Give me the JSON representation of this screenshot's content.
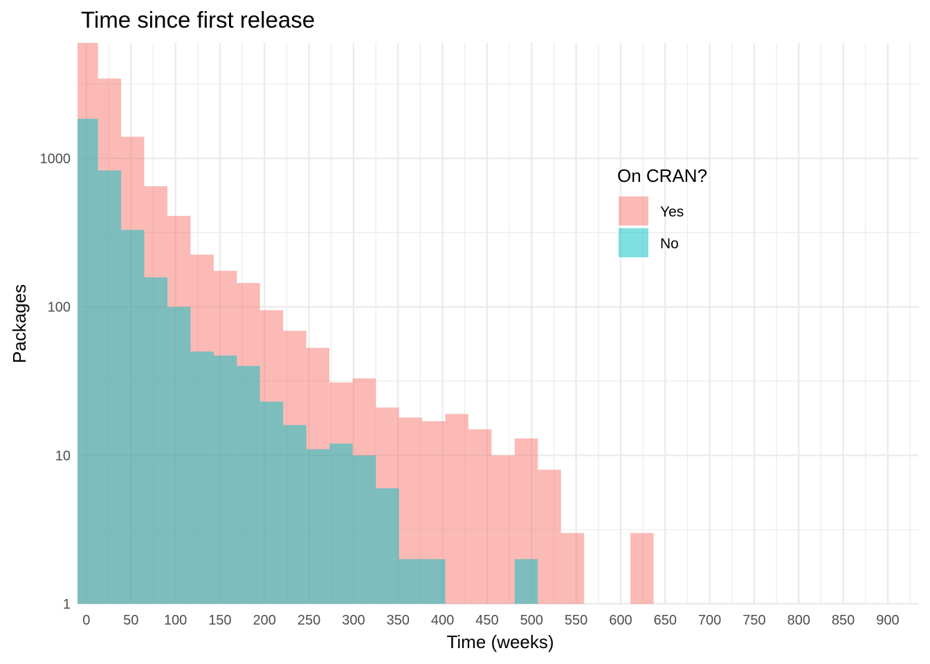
{
  "chart_data": {
    "type": "histogram",
    "title": "Time since first release",
    "xlabel": "Time (weeks)",
    "ylabel": "Packages",
    "y_scale": "log10",
    "xlim": [
      -10,
      935
    ],
    "ylim": [
      1,
      6000
    ],
    "grid": true,
    "legend": {
      "title": "On CRAN?",
      "placement": "right-center",
      "entries": [
        "Yes",
        "No"
      ]
    },
    "x_ticks": [
      0,
      50,
      100,
      150,
      200,
      250,
      300,
      350,
      400,
      450,
      500,
      550,
      600,
      650,
      700,
      750,
      800,
      850,
      900
    ],
    "y_ticks": [
      1,
      10,
      100,
      1000
    ],
    "bin_width": 26,
    "series": [
      {
        "name": "Yes",
        "color": "#F8766D",
        "bins": [
          {
            "x0": -13,
            "x1": 13,
            "count": 6000
          },
          {
            "x0": 13,
            "x1": 39,
            "count": 3450
          },
          {
            "x0": 39,
            "x1": 65,
            "count": 1400
          },
          {
            "x0": 65,
            "x1": 91,
            "count": 650
          },
          {
            "x0": 91,
            "x1": 117,
            "count": 410
          },
          {
            "x0": 117,
            "x1": 143,
            "count": 225
          },
          {
            "x0": 143,
            "x1": 169,
            "count": 175
          },
          {
            "x0": 169,
            "x1": 195,
            "count": 145
          },
          {
            "x0": 195,
            "x1": 221,
            "count": 95
          },
          {
            "x0": 221,
            "x1": 247,
            "count": 69
          },
          {
            "x0": 247,
            "x1": 273,
            "count": 53
          },
          {
            "x0": 273,
            "x1": 299,
            "count": 31
          },
          {
            "x0": 299,
            "x1": 325,
            "count": 33
          },
          {
            "x0": 325,
            "x1": 351,
            "count": 21
          },
          {
            "x0": 351,
            "x1": 377,
            "count": 18
          },
          {
            "x0": 377,
            "x1": 403,
            "count": 17
          },
          {
            "x0": 403,
            "x1": 429,
            "count": 19
          },
          {
            "x0": 429,
            "x1": 455,
            "count": 15
          },
          {
            "x0": 455,
            "x1": 481,
            "count": 10
          },
          {
            "x0": 481,
            "x1": 507,
            "count": 13
          },
          {
            "x0": 507,
            "x1": 533,
            "count": 8
          },
          {
            "x0": 533,
            "x1": 559,
            "count": 3
          },
          {
            "x0": 611,
            "x1": 637,
            "count": 3
          }
        ]
      },
      {
        "name": "No",
        "color": "#00BFC4",
        "bins": [
          {
            "x0": -13,
            "x1": 13,
            "count": 1850
          },
          {
            "x0": 13,
            "x1": 39,
            "count": 830
          },
          {
            "x0": 39,
            "x1": 65,
            "count": 330
          },
          {
            "x0": 65,
            "x1": 91,
            "count": 158
          },
          {
            "x0": 91,
            "x1": 117,
            "count": 100
          },
          {
            "x0": 117,
            "x1": 143,
            "count": 50
          },
          {
            "x0": 143,
            "x1": 169,
            "count": 47
          },
          {
            "x0": 169,
            "x1": 195,
            "count": 40
          },
          {
            "x0": 195,
            "x1": 221,
            "count": 23
          },
          {
            "x0": 221,
            "x1": 247,
            "count": 16
          },
          {
            "x0": 247,
            "x1": 273,
            "count": 11
          },
          {
            "x0": 273,
            "x1": 299,
            "count": 12
          },
          {
            "x0": 299,
            "x1": 325,
            "count": 10
          },
          {
            "x0": 325,
            "x1": 351,
            "count": 6
          },
          {
            "x0": 351,
            "x1": 377,
            "count": 2
          },
          {
            "x0": 377,
            "x1": 403,
            "count": 2
          },
          {
            "x0": 481,
            "x1": 507,
            "count": 2
          }
        ]
      }
    ]
  }
}
